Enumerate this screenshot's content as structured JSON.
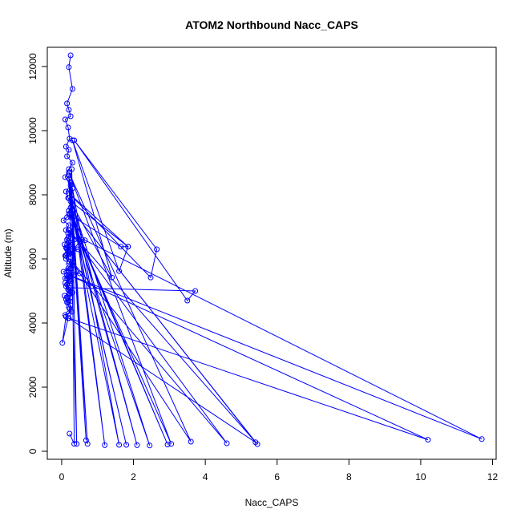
{
  "chart_data": {
    "type": "scatter",
    "title": "ATOM2 Northbound Nacc_CAPS",
    "xlabel": "Nacc_CAPS",
    "ylabel": "Altitude (m)",
    "xlim": [
      -0.4,
      12.1
    ],
    "ylim": [
      -250,
      12600
    ],
    "xticks": [
      0,
      2,
      4,
      6,
      8,
      10,
      12
    ],
    "yticks": [
      0,
      2000,
      4000,
      6000,
      8000,
      10000,
      12000
    ],
    "grid": false,
    "line_color": "#0000ff",
    "marker": "open-circle",
    "series": [
      {
        "x": [
          0.25,
          0.2,
          0.3,
          0.15,
          0.2,
          0.25,
          0.1,
          0.18,
          0.22,
          0.12,
          0.2,
          0.15,
          0.3,
          0.2,
          0.1,
          0.25,
          0.12,
          0.18,
          0.3,
          0.2,
          0.15,
          0.05,
          0.2,
          0.12,
          0.28,
          0.18,
          0.08,
          0.15,
          0.22,
          0.55,
          0.25,
          0.15,
          0.45,
          0.2,
          0.12,
          0.3,
          0.18,
          0.05,
          0.15,
          0.2,
          0.1,
          0.25,
          0.12,
          0.18,
          0.22,
          0.25,
          0.15,
          0.2,
          0.28,
          0.1,
          0.18,
          0.02,
          0.12,
          0.2,
          0.22,
          0.25,
          0.18,
          0.2,
          0.12,
          0.15,
          0.08,
          0.2,
          0.3,
          0.22,
          0.18,
          0.2,
          0.15,
          0.1,
          0.2,
          0.22,
          0.15,
          0.25,
          0.2,
          0.5,
          0.2,
          0.18,
          0.25,
          0.3,
          0.2,
          0.22,
          0.12,
          0.2,
          0.1,
          0.15,
          0.2,
          0.18,
          0.2,
          0.12,
          0.2,
          0.25,
          0.2,
          0.2,
          0.15,
          0.2,
          0.18,
          0.22
        ],
        "y": [
          12350,
          11980,
          11300,
          10850,
          10650,
          10450,
          10350,
          10100,
          9750,
          9500,
          9400,
          9200,
          9000,
          8800,
          8550,
          8300,
          8100,
          7900,
          7700,
          7500,
          7300,
          7200,
          7050,
          6900,
          6750,
          6650,
          6450,
          6300,
          6150,
          6600,
          6500,
          6350,
          6300,
          6150,
          6100,
          5900,
          5700,
          5600,
          5500,
          5450,
          5400,
          5300,
          5150,
          5050,
          4900,
          4800,
          4650,
          4500,
          4350,
          4250,
          4150,
          3380,
          4200,
          4300,
          4450,
          4550,
          4650,
          4700,
          4750,
          4800,
          4850,
          4900,
          4950,
          5000,
          5050,
          5100,
          5200,
          5250,
          5300,
          5350,
          5400,
          5450,
          5500,
          5550,
          5600,
          5650,
          5700,
          5800,
          5850,
          5900,
          6000,
          6050,
          6100,
          6150,
          6200,
          6250,
          6300,
          6350,
          6400,
          6450,
          6500,
          6550,
          6600,
          6700,
          6800,
          6900
        ]
      },
      {
        "x": [
          0.25,
          3.72,
          3.5,
          0.35,
          2.65,
          2.48,
          0.2,
          1.85,
          1.6,
          0.3,
          1.4,
          0.25,
          1.85,
          1.65,
          0.2,
          0.65,
          11.7,
          0.2,
          10.2,
          0.2,
          5.4,
          0.3,
          5.45,
          0.2,
          4.6,
          0.3,
          3.6,
          0.2,
          3.05,
          0.25,
          2.95,
          0.2,
          2.45,
          0.3,
          2.1,
          0.2,
          1.8,
          0.25,
          1.6,
          0.3,
          1.2,
          0.22,
          0.72,
          0.25,
          0.68,
          0.2,
          0.42,
          0.28,
          0.35,
          0.22
        ],
        "y": [
          5100,
          5000,
          4700,
          9700,
          6300,
          5420,
          8050,
          6380,
          5620,
          9700,
          5420,
          7800,
          6380,
          6380,
          7400,
          6580,
          380,
          5500,
          360,
          4150,
          280,
          7500,
          220,
          6900,
          250,
          5900,
          300,
          8700,
          230,
          7300,
          210,
          7500,
          180,
          7700,
          190,
          7900,
          200,
          7600,
          200,
          8200,
          190,
          8500,
          230,
          8400,
          340,
          8600,
          230,
          8800,
          230,
          550
        ]
      }
    ]
  }
}
